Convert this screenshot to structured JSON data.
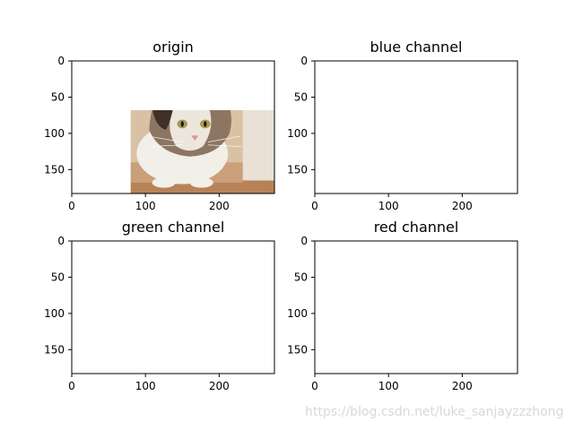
{
  "figure": {
    "watermark": "https://blog.csdn.net/luke_sanjayzzzhong"
  },
  "chart_data": [
    {
      "type": "image",
      "title": "origin",
      "colormap": "rgb",
      "xlim": [
        0,
        275
      ],
      "ylim": [
        183,
        0
      ],
      "xticks": [
        0,
        100,
        200
      ],
      "yticks": [
        0,
        50,
        100,
        150
      ]
    },
    {
      "type": "image",
      "title": "blue channel",
      "colormap": "Blues",
      "colors": [
        "#f7fbff",
        "#08306b"
      ],
      "xlim": [
        0,
        275
      ],
      "ylim": [
        183,
        0
      ],
      "xticks": [
        0,
        100,
        200
      ],
      "yticks": [
        0,
        50,
        100,
        150
      ]
    },
    {
      "type": "image",
      "title": "green channel",
      "colormap": "Greens",
      "colors": [
        "#f7fcf5",
        "#00441b"
      ],
      "xlim": [
        0,
        275
      ],
      "ylim": [
        183,
        0
      ],
      "xticks": [
        0,
        100,
        200
      ],
      "yticks": [
        0,
        50,
        100,
        150
      ]
    },
    {
      "type": "image",
      "title": "red channel",
      "colormap": "Reds",
      "colors": [
        "#fff5f0",
        "#67000d"
      ],
      "xlim": [
        0,
        275
      ],
      "ylim": [
        183,
        0
      ],
      "xticks": [
        0,
        100,
        200
      ],
      "yticks": [
        0,
        50,
        100,
        150
      ]
    }
  ]
}
